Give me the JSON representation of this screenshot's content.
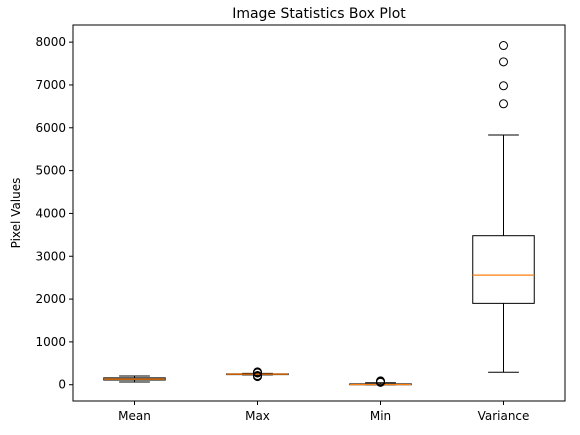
{
  "chart_data": {
    "type": "boxplot",
    "title": "Image Statistics Box Plot",
    "xlabel": "",
    "ylabel": "Pixel Values",
    "categories": [
      "Mean",
      "Max",
      "Min",
      "Variance"
    ],
    "ylim": [
      -380,
      8400
    ],
    "yticks": [
      0,
      1000,
      2000,
      3000,
      4000,
      5000,
      6000,
      7000,
      8000
    ],
    "ytick_labels": [
      "0",
      "1000",
      "2000",
      "3000",
      "4000",
      "5000",
      "6000",
      "7000",
      "8000"
    ],
    "grid": false,
    "legend": "none",
    "boxes": [
      {
        "label": "Mean",
        "whisker_low": 65,
        "q1": 110,
        "median": 130,
        "q3": 160,
        "whisker_high": 205,
        "outliers": []
      },
      {
        "label": "Max",
        "whisker_low": 230,
        "q1": 240,
        "median": 247,
        "q3": 255,
        "whisker_high": 265,
        "outliers": [
          190,
          205,
          215,
          275,
          285,
          300
        ]
      },
      {
        "label": "Min",
        "whisker_low": 0,
        "q1": 0,
        "median": 5,
        "q3": 20,
        "whisker_high": 45,
        "outliers": [
          55,
          65,
          75,
          90
        ]
      },
      {
        "label": "Variance",
        "whisker_low": 290,
        "q1": 1900,
        "median": 2560,
        "q3": 3480,
        "whisker_high": 5830,
        "outliers": [
          6560,
          6980,
          7540,
          7920
        ]
      }
    ],
    "colors": {
      "box": "#000000",
      "median": "#ff7f0e",
      "outlier": "#000000"
    }
  }
}
